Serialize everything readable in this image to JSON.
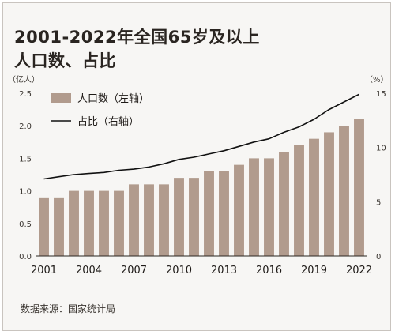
{
  "page": {
    "title_line1": "2001-2022年全国65岁及以上",
    "title_line2": "人口数、占比",
    "source": "数据来源：国家统计局"
  },
  "colors": {
    "bar": "#b19b8d",
    "line": "#111111",
    "axis_text": "#3a3530",
    "background": "#f7f6f4"
  },
  "chart_data": {
    "type": "bar",
    "left_unit": "（亿人）",
    "right_unit": "（%）",
    "ylim_left": [
      0,
      2.5
    ],
    "ylim_right": [
      0,
      15
    ],
    "yticks_left": [
      "0.0",
      "0.5",
      "1.0",
      "1.5",
      "2.0",
      "2.5"
    ],
    "yticks_right": [
      "0",
      "5",
      "10",
      "15"
    ],
    "xtick_labels": [
      "2001",
      "2004",
      "2007",
      "2010",
      "2013",
      "2016",
      "2019",
      "2022"
    ],
    "x": [
      2001,
      2002,
      2003,
      2004,
      2005,
      2006,
      2007,
      2008,
      2009,
      2010,
      2011,
      2012,
      2013,
      2014,
      2015,
      2016,
      2017,
      2018,
      2019,
      2020,
      2021,
      2022
    ],
    "legend_placement": "top-left",
    "series": [
      {
        "name": "人口数（左轴）",
        "kind": "bar",
        "axis": "left",
        "values": [
          0.9,
          0.9,
          1.0,
          1.0,
          1.0,
          1.0,
          1.1,
          1.1,
          1.1,
          1.2,
          1.2,
          1.3,
          1.3,
          1.4,
          1.5,
          1.5,
          1.6,
          1.7,
          1.8,
          1.9,
          2.0,
          2.1
        ]
      },
      {
        "name": "占比（右轴）",
        "kind": "line",
        "axis": "right",
        "values": [
          7.1,
          7.3,
          7.5,
          7.6,
          7.7,
          7.9,
          8.0,
          8.2,
          8.5,
          8.9,
          9.1,
          9.4,
          9.7,
          10.1,
          10.5,
          10.8,
          11.4,
          11.9,
          12.6,
          13.5,
          14.2,
          14.9
        ]
      }
    ]
  }
}
